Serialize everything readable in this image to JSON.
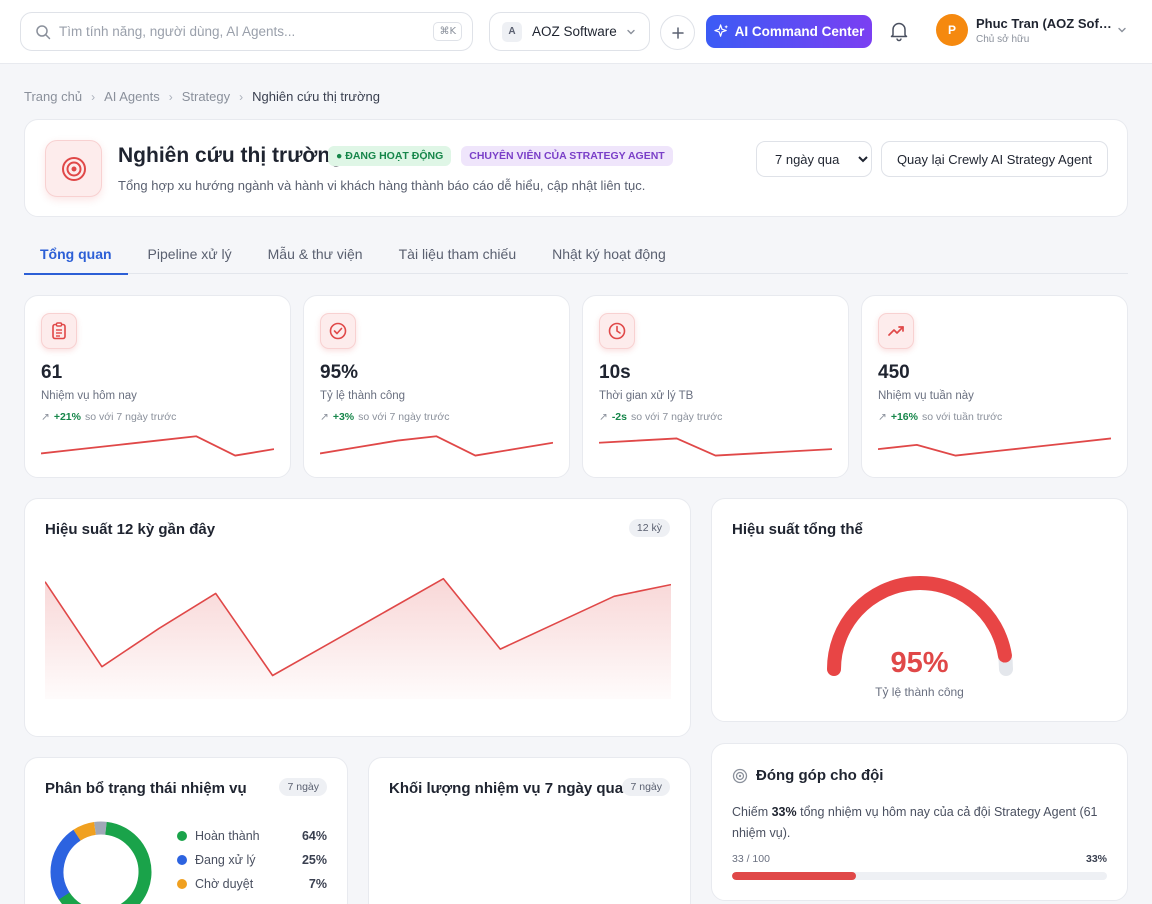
{
  "search": {
    "placeholder": "Tìm tính năng, người dùng, AI Agents...",
    "shortcut": "⌘K"
  },
  "workspace": {
    "badge": "A",
    "name": "AOZ Software"
  },
  "ai_button": {
    "label": "AI Command Center"
  },
  "user": {
    "initial": "P",
    "name": "Phuc Tran (AOZ Software)",
    "role": "Chủ sở hữu"
  },
  "breadcrumb": [
    "Trang chủ",
    "AI Agents",
    "Strategy",
    "Nghiên cứu thị trường"
  ],
  "header": {
    "title": "Nghiên cứu thị trường",
    "status": "● ĐANG HOẠT ĐỘNG",
    "role_badge": "CHUYÊN VIÊN CỦA STRATEGY AGENT",
    "description": "Tổng hợp xu hướng ngành và hành vi khách hàng thành báo cáo dễ hiểu, cập nhật liên tục.",
    "period": "7 ngày qua",
    "period_options": [
      "7 ngày qua"
    ],
    "back_label": "Quay lại Crewly AI Strategy Agent"
  },
  "tabs": [
    "Tổng quan",
    "Pipeline xử lý",
    "Mẫu & thư viện",
    "Tài liệu tham chiếu",
    "Nhật ký hoạt động"
  ],
  "stats": [
    {
      "icon": "clipboard-icon",
      "value": "61",
      "label": "Nhiệm vụ hôm nay",
      "delta": "+21%",
      "delta_note": "so với 7 ngày trước",
      "spark": [
        2,
        3,
        4,
        5,
        6,
        1.5,
        3
      ]
    },
    {
      "icon": "check-circle-icon",
      "value": "95%",
      "label": "Tỷ lệ thành công",
      "delta": "+3%",
      "delta_note": "so với 7 ngày trước",
      "spark": [
        2,
        3.5,
        5,
        6,
        1.5,
        3,
        4.5
      ]
    },
    {
      "icon": "clock-icon",
      "value": "10s",
      "label": "Thời gian xử lý TB",
      "delta": "-2s",
      "delta_note": "so với 7 ngày trước",
      "spark": [
        4.5,
        5,
        5.5,
        1.5,
        2,
        2.5,
        3
      ]
    },
    {
      "icon": "trend-up-icon",
      "value": "450",
      "label": "Nhiệm vụ tuần này",
      "delta": "+16%",
      "delta_note": "so với tuần trước",
      "spark": [
        3,
        4,
        1.5,
        2.5,
        3.5,
        4.5,
        5.5
      ]
    }
  ],
  "performance": {
    "title": "Hiệu suất 12 kỳ gần đây",
    "pill": "12 kỳ"
  },
  "overall": {
    "title": "Hiệu suất tổng thể",
    "value": "95%",
    "fraction": 0.95,
    "label": "Tỷ lệ thành công"
  },
  "distribution": {
    "title": "Phân bổ trạng thái nhiệm vụ",
    "pill": "7 ngày",
    "items": [
      {
        "label": "Hoàn thành",
        "pct": "64%",
        "value": 64,
        "color": "#1aa34a"
      },
      {
        "label": "Đang xử lý",
        "pct": "25%",
        "value": 25,
        "color": "#2c63e0"
      },
      {
        "label": "Chờ duyệt",
        "pct": "7%",
        "value": 7,
        "color": "#f0a020"
      },
      {
        "value": 4,
        "color": "#a0a8b8"
      }
    ]
  },
  "volume": {
    "title": "Khối lượng nhiệm vụ 7 ngày qua",
    "pill": "7 ngày"
  },
  "contribution": {
    "title": "Đóng góp cho đội",
    "text_prefix": "Chiếm ",
    "text_bold": "33%",
    "text_suffix": " tổng nhiệm vụ hôm nay của cả đội Strategy Agent (61 nhiệm vụ).",
    "progress_label": "33 / 100",
    "progress_pct": "33%",
    "progress_fraction": 0.33
  },
  "chart_data": {
    "type": "area",
    "x": [
      1,
      2,
      3,
      4,
      5,
      6,
      7,
      8,
      9,
      10,
      11,
      12
    ],
    "values": [
      95,
      66,
      79,
      91,
      63,
      74,
      85,
      96,
      72,
      81,
      90,
      94
    ],
    "ylim": [
      0,
      100
    ],
    "color": "#e04848",
    "grid": false
  }
}
